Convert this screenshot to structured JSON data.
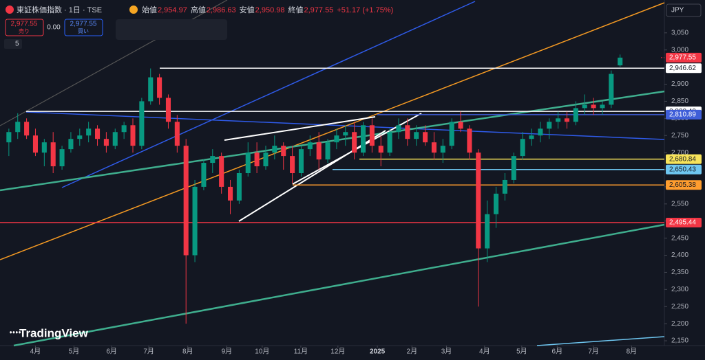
{
  "chart_data": {
    "type": "candlestick",
    "title": "東証株価指数 · 1日 · TSE",
    "header": [
      {
        "label": "始値",
        "value": "2,954.97"
      },
      {
        "label": "高値",
        "value": "2,986.63"
      },
      {
        "label": "安値",
        "value": "2,950.98"
      },
      {
        "label": "終値",
        "value": "2,977.55"
      }
    ],
    "change": "+51.17 (+1.75%)",
    "sell": {
      "price": "2,977.55",
      "label": "売り"
    },
    "spread": "0.00",
    "buy": {
      "price": "2,977.55",
      "label": "買い"
    },
    "indicator_count": "5",
    "currency": "JPY",
    "brand": "TradingView",
    "up_color": "#089981",
    "down_color": "#f23645",
    "x": [
      -3,
      -2,
      -1,
      0,
      1,
      2,
      3,
      4,
      5,
      6,
      7,
      8,
      9,
      10,
      11,
      12,
      13,
      14,
      15,
      16,
      17,
      18,
      19,
      20,
      21,
      22,
      23,
      24,
      25,
      26,
      27,
      28,
      29,
      30,
      31,
      32,
      33,
      34,
      35,
      36,
      37,
      38,
      39,
      40,
      41,
      42,
      43,
      44,
      45,
      46,
      47,
      48,
      49,
      50,
      51,
      52,
      53,
      54,
      55,
      56,
      57,
      58,
      59,
      60,
      61,
      62,
      63,
      64,
      65,
      66
    ],
    "open": [
      2730,
      2760,
      2790,
      2750,
      2700,
      2730,
      2660,
      2710,
      2740,
      2750,
      2770,
      2740,
      2720,
      2760,
      2780,
      2720,
      2850,
      2920,
      2860,
      2790,
      2720,
      2400,
      2600,
      2670,
      2690,
      2600,
      2560,
      2640,
      2700,
      2660,
      2700,
      2720,
      2690,
      2640,
      2710,
      2730,
      2680,
      2730,
      2750,
      2760,
      2700,
      2780,
      2720,
      2700,
      2760,
      2780,
      2740,
      2760,
      2730,
      2700,
      2720,
      2790,
      2770,
      2700,
      2420,
      2520,
      2580,
      2620,
      2690,
      2740,
      2750,
      2770,
      2790,
      2800,
      2790,
      2830,
      2840,
      2830,
      2840,
      2954.97
    ],
    "high": [
      2770,
      2815,
      2800,
      2770,
      2740,
      2760,
      2720,
      2760,
      2770,
      2790,
      2780,
      2760,
      2770,
      2790,
      2800,
      2860,
      2946,
      2930,
      2870,
      2810,
      2740,
      2620,
      2680,
      2710,
      2700,
      2620,
      2650,
      2730,
      2730,
      2720,
      2750,
      2730,
      2720,
      2720,
      2750,
      2760,
      2740,
      2770,
      2780,
      2790,
      2790,
      2800,
      2750,
      2770,
      2800,
      2800,
      2780,
      2780,
      2760,
      2740,
      2800,
      2820,
      2780,
      2710,
      2560,
      2600,
      2640,
      2700,
      2760,
      2770,
      2790,
      2800,
      2820,
      2820,
      2850,
      2870,
      2860,
      2850,
      2940,
      2986.63
    ],
    "low": [
      2690,
      2740,
      2740,
      2690,
      2660,
      2640,
      2650,
      2700,
      2720,
      2730,
      2720,
      2700,
      2710,
      2740,
      2700,
      2710,
      2840,
      2840,
      2770,
      2700,
      2200,
      2380,
      2590,
      2640,
      2580,
      2520,
      2550,
      2630,
      2640,
      2650,
      2680,
      2650,
      2610,
      2630,
      2690,
      2650,
      2670,
      2710,
      2720,
      2680,
      2690,
      2700,
      2660,
      2690,
      2740,
      2720,
      2720,
      2720,
      2680,
      2670,
      2710,
      2760,
      2680,
      2250,
      2380,
      2480,
      2560,
      2610,
      2680,
      2720,
      2730,
      2740,
      2770,
      2770,
      2780,
      2810,
      2810,
      2810,
      2830,
      2950.98
    ],
    "close": [
      2760,
      2790,
      2750,
      2700,
      2730,
      2660,
      2710,
      2740,
      2750,
      2770,
      2740,
      2720,
      2760,
      2780,
      2720,
      2850,
      2920,
      2860,
      2790,
      2720,
      2400,
      2600,
      2670,
      2690,
      2600,
      2560,
      2640,
      2700,
      2660,
      2700,
      2720,
      2690,
      2640,
      2710,
      2730,
      2680,
      2730,
      2750,
      2760,
      2700,
      2780,
      2720,
      2700,
      2760,
      2780,
      2740,
      2760,
      2730,
      2700,
      2720,
      2790,
      2770,
      2700,
      2420,
      2520,
      2580,
      2620,
      2690,
      2740,
      2750,
      2770,
      2790,
      2800,
      2790,
      2830,
      2840,
      2830,
      2840,
      2930,
      2977.55
    ],
    "xlim": [
      -4,
      71
    ],
    "xticks": [
      {
        "value": 0,
        "label": "4月"
      },
      {
        "value": 4.35,
        "label": "5月"
      },
      {
        "value": 8.6,
        "label": "6月"
      },
      {
        "value": 12.8,
        "label": "7月"
      },
      {
        "value": 17.2,
        "label": "8月"
      },
      {
        "value": 21.6,
        "label": "9月"
      },
      {
        "value": 25.6,
        "label": "10月"
      },
      {
        "value": 29.96,
        "label": "11月"
      },
      {
        "value": 34.15,
        "label": "12月"
      },
      {
        "value": 38.6,
        "label": "2025"
      },
      {
        "value": 42.5,
        "label": "2月"
      },
      {
        "value": 46.4,
        "label": "3月"
      },
      {
        "value": 50.7,
        "label": "4月"
      },
      {
        "value": 54.9,
        "label": "5月"
      },
      {
        "value": 58.9,
        "label": "6月"
      },
      {
        "value": 63,
        "label": "7月"
      },
      {
        "value": 67.3,
        "label": "8月"
      }
    ],
    "ylim": [
      2136,
      3146
    ],
    "yticks": [
      {
        "value": 2150,
        "label": "2,150"
      },
      {
        "value": 2200,
        "label": "2,200"
      },
      {
        "value": 2250,
        "label": "2,250"
      },
      {
        "value": 2300,
        "label": "2,300"
      },
      {
        "value": 2350,
        "label": "2,350"
      },
      {
        "value": 2400,
        "label": "2,400"
      },
      {
        "value": 2450,
        "label": "2,450"
      },
      {
        "value": 2500,
        "label": "2,500"
      },
      {
        "value": 2550,
        "label": "2,550"
      },
      {
        "value": 2600,
        "label": "2,600"
      },
      {
        "value": 2650,
        "label": "2,650"
      },
      {
        "value": 2700,
        "label": "2,700"
      },
      {
        "value": 2750,
        "label": "2,750"
      },
      {
        "value": 2800,
        "label": "2,800"
      },
      {
        "value": 2850,
        "label": "2,850"
      },
      {
        "value": 2900,
        "label": "2,900"
      },
      {
        "value": 2950,
        "label": "2,950"
      },
      {
        "value": 3000,
        "label": "3,000"
      },
      {
        "value": 3050,
        "label": "3,050"
      }
    ],
    "grid": false,
    "levels": [
      {
        "value": 2977.55,
        "label": "2,977.55",
        "color": "#f23645"
      },
      {
        "value": 2946.62,
        "label": "2,946.62",
        "color": "#ffffff"
      },
      {
        "value": 2820.4,
        "label": "2,820.40",
        "color": "#ffffff"
      },
      {
        "value": 2810.89,
        "label": "2,810.89",
        "color": "#3f5ed8"
      },
      {
        "value": 2680.84,
        "label": "2,680.84",
        "color": "#f7e35a"
      },
      {
        "value": 2650.43,
        "label": "2,650.43",
        "color": "#6ec6f0"
      },
      {
        "value": 2605.38,
        "label": "2,605.38",
        "color": "#ff9d2e"
      },
      {
        "value": 2495.44,
        "label": "2,495.44",
        "color": "#f23645"
      }
    ]
  }
}
